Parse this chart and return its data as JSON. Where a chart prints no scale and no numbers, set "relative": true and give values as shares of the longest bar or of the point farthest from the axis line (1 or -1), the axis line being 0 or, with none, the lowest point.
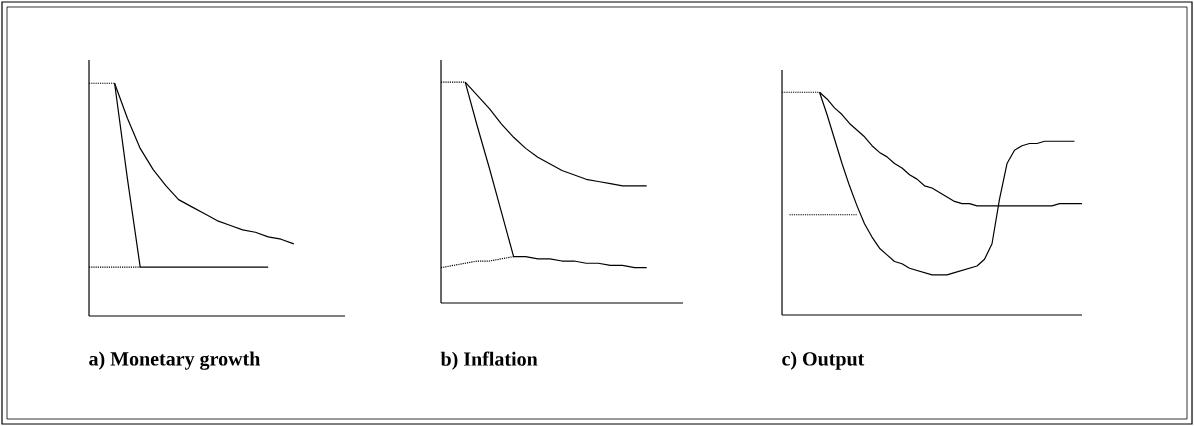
{
  "chart_data": [
    {
      "type": "line",
      "title": "a)   Monetary growth",
      "relative": true,
      "categories": [
        null,
        null,
        null,
        null,
        null,
        null,
        null,
        null,
        null,
        null,
        null,
        null,
        null,
        null,
        null,
        null,
        null,
        null,
        null,
        null,
        null
      ],
      "series": [
        {
          "color": "#000000",
          "line_style": "solid",
          "values": [
            null,
            null,
            1.0,
            0.85,
            0.72,
            0.63,
            0.56,
            0.5,
            0.47,
            0.44,
            0.41,
            0.39,
            0.37,
            0.36,
            0.34,
            0.33,
            0.31,
            null,
            null,
            null,
            null
          ]
        },
        {
          "color": "#000000",
          "line_style": "solid",
          "values": [
            null,
            null,
            1.0,
            0.59,
            0.21,
            0.21,
            0.21,
            0.21,
            0.21,
            0.21,
            0.21,
            0.21,
            0.21,
            0.21,
            0.21,
            null,
            null,
            null,
            null,
            null,
            null
          ]
        },
        {
          "color": "#000000",
          "line_style": "dotted",
          "values": [
            1.0,
            1.0,
            1.0,
            null,
            null,
            null,
            null,
            null,
            null,
            null,
            null,
            null,
            null,
            null,
            null,
            null,
            null,
            null,
            null,
            null,
            null
          ]
        },
        {
          "color": "#000000",
          "line_style": "dotted",
          "values": [
            0.21,
            0.21,
            0.21,
            0.21,
            0.21,
            null,
            null,
            null,
            null,
            null,
            null,
            null,
            null,
            null,
            null,
            null,
            null,
            null,
            null,
            null,
            null
          ]
        }
      ]
    },
    {
      "type": "line",
      "title": "b) Inflation",
      "relative": true,
      "categories": [
        null,
        null,
        null,
        null,
        null,
        null,
        null,
        null,
        null,
        null,
        null,
        null,
        null,
        null,
        null,
        null,
        null,
        null,
        null,
        null,
        null
      ],
      "series": [
        {
          "color": "#000000",
          "line_style": "solid",
          "values": [
            null,
            null,
            1.0,
            0.94,
            0.88,
            0.81,
            0.75,
            0.7,
            0.66,
            0.63,
            0.6,
            0.58,
            0.56,
            0.55,
            0.54,
            0.53,
            0.53,
            0.53,
            null,
            null,
            null
          ]
        },
        {
          "color": "#000000",
          "line_style": "solid",
          "values": [
            null,
            null,
            1.0,
            0.8,
            0.61,
            0.41,
            0.21,
            0.21,
            0.2,
            0.2,
            0.19,
            0.19,
            0.18,
            0.18,
            0.17,
            0.17,
            0.16,
            0.16,
            null,
            null,
            null
          ]
        },
        {
          "color": "#000000",
          "line_style": "dotted",
          "values": [
            1.0,
            1.0,
            1.0,
            null,
            null,
            null,
            null,
            null,
            null,
            null,
            null,
            null,
            null,
            null,
            null,
            null,
            null,
            null,
            null,
            null,
            null
          ]
        },
        {
          "color": "#000000",
          "line_style": "dotted",
          "values": [
            0.16,
            0.17,
            0.18,
            0.19,
            0.19,
            0.2,
            0.21,
            null,
            null,
            null,
            null,
            null,
            null,
            null,
            null,
            null,
            null,
            null,
            null,
            null,
            null
          ]
        }
      ]
    },
    {
      "type": "line",
      "title": "c) Output",
      "relative": true,
      "categories": [
        null,
        null,
        null,
        null,
        null,
        null,
        null,
        null,
        null,
        null,
        null,
        null,
        null,
        null,
        null,
        null,
        null,
        null,
        null,
        null,
        null,
        null,
        null,
        null,
        null,
        null,
        null,
        null,
        null,
        null,
        null,
        null,
        null,
        null,
        null,
        null,
        null,
        null,
        null,
        null,
        null
      ],
      "series": [
        {
          "color": "#000000",
          "line_style": "solid",
          "values": [
            null,
            null,
            null,
            null,
            null,
            1.0,
            0.97,
            0.93,
            0.9,
            0.86,
            0.83,
            0.8,
            0.76,
            0.73,
            0.71,
            0.68,
            0.66,
            0.63,
            0.61,
            0.58,
            0.57,
            0.55,
            0.53,
            0.51,
            0.5,
            0.5,
            0.49,
            0.49,
            0.49,
            0.49,
            0.49,
            0.49,
            0.49,
            0.49,
            0.49,
            0.49,
            0.49,
            0.5,
            0.5,
            0.5,
            0.5
          ]
        },
        {
          "color": "#000000",
          "line_style": "solid",
          "values": [
            null,
            null,
            null,
            null,
            null,
            1.0,
            0.9,
            0.79,
            0.68,
            0.58,
            0.49,
            0.41,
            0.35,
            0.3,
            0.27,
            0.24,
            0.23,
            0.21,
            0.2,
            0.19,
            0.18,
            0.18,
            0.18,
            0.19,
            0.2,
            0.21,
            0.22,
            0.25,
            0.32,
            0.52,
            0.68,
            0.74,
            0.76,
            0.77,
            0.77,
            0.78,
            0.78,
            0.78,
            0.78,
            0.78,
            null
          ]
        },
        {
          "color": "#000000",
          "line_style": "dotted",
          "values": [
            1.0,
            1.0,
            1.0,
            1.0,
            1.0,
            1.0,
            null,
            null,
            null,
            null,
            null,
            null,
            null,
            null,
            null,
            null,
            null,
            null,
            null,
            null,
            null,
            null,
            null,
            null,
            null,
            null,
            null,
            null,
            null,
            null,
            null,
            null,
            null,
            null,
            null,
            null,
            null,
            null,
            null,
            null,
            null
          ]
        },
        {
          "color": "#000000",
          "line_style": "dotted",
          "values": [
            null,
            0.45,
            0.45,
            0.45,
            0.45,
            0.45,
            0.45,
            0.45,
            0.45,
            0.45,
            0.45,
            null,
            null,
            null,
            null,
            null,
            null,
            null,
            null,
            null,
            null,
            null,
            null,
            null,
            null,
            null,
            null,
            null,
            null,
            null,
            null,
            null,
            null,
            null,
            null,
            null,
            null,
            null,
            null,
            null,
            null
          ]
        }
      ]
    }
  ]
}
